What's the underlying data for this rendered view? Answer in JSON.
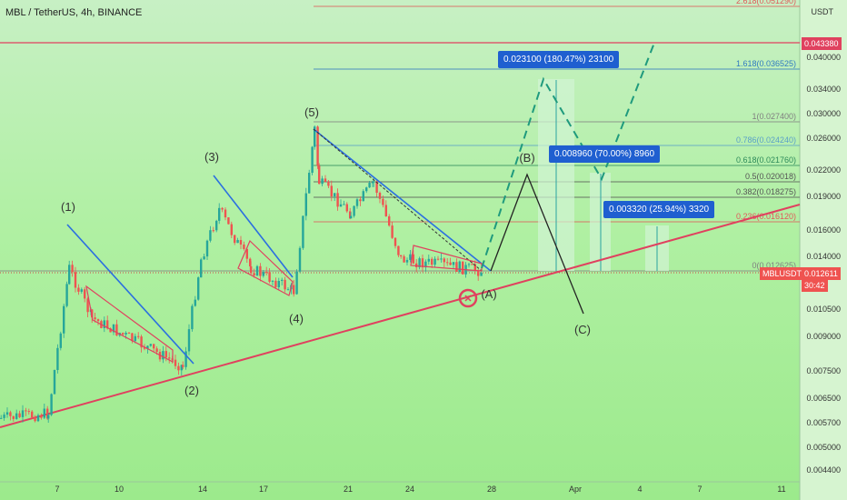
{
  "header": {
    "title": "MBL / TetherUS, 4h, BINANCE"
  },
  "axis": {
    "currency": "USDT",
    "y_ticks": [
      "0.040000",
      "0.034000",
      "0.030000",
      "0.026000",
      "0.022000",
      "0.019000",
      "0.016000",
      "0.014000",
      "0.012000",
      "0.010500",
      "0.009000",
      "0.007500",
      "0.006500",
      "0.005700",
      "0.005000",
      "0.004400"
    ],
    "x_ticks": [
      "7",
      "10",
      "14",
      "17",
      "21",
      "24",
      "28",
      "Apr",
      "4",
      "7",
      "11"
    ]
  },
  "price_tags": {
    "upper_level": "0.043380",
    "symbol": "MBLUSDT",
    "current_price": "0.012611",
    "countdown": "30:42"
  },
  "fib_levels": [
    {
      "label": "2.618(0.051290)",
      "color": "#e05a5a"
    },
    {
      "label": "1.618(0.036525)",
      "color": "#2f7ac0"
    },
    {
      "label": "1(0.027400)",
      "color": "#808080"
    },
    {
      "label": "0.786(0.024240)",
      "color": "#5aa0c8"
    },
    {
      "label": "0.618(0.021760)",
      "color": "#2d8a5a"
    },
    {
      "label": "0.5(0.020018)",
      "color": "#555555"
    },
    {
      "label": "0.382(0.018275)",
      "color": "#555555"
    },
    {
      "label": "0.236(0.016120)",
      "color": "#e05a5a"
    },
    {
      "label": "0(0.012625)",
      "color": "#808080"
    }
  ],
  "measures": [
    {
      "text": "0.023100 (180.47%) 23100"
    },
    {
      "text": "0.008960 (70.00%) 8960"
    },
    {
      "text": "0.003320 (25.94%) 3320"
    }
  ],
  "waves": [
    "(1)",
    "(2)",
    "(3)",
    "(4)",
    "(5)",
    "(A)",
    "(B)",
    "(C)"
  ],
  "chart_data": {
    "type": "candlestick",
    "symbol": "MBLUSDT",
    "timeframe": "4h",
    "exchange": "BINANCE",
    "x": [
      "6",
      "7",
      "8",
      "9",
      "10",
      "11",
      "12",
      "13",
      "14",
      "15",
      "16",
      "17",
      "18",
      "19",
      "20",
      "21",
      "22",
      "23",
      "24",
      "25",
      "26",
      "27",
      "28"
    ],
    "close": [
      0.0057,
      0.0071,
      0.0082,
      0.0076,
      0.007,
      0.007,
      0.0069,
      0.0072,
      0.0094,
      0.009,
      0.0085,
      0.0081,
      0.0108,
      0.027,
      0.0225,
      0.0216,
      0.0203,
      0.017,
      0.0138,
      0.0137,
      0.0133,
      0.013,
      0.0126
    ],
    "current_price": 0.012611,
    "fib_retracement": {
      "2.618": 0.05129,
      "1.618": 0.036525,
      "1": 0.0274,
      "0.786": 0.02424,
      "0.618": 0.02176,
      "0.5": 0.020018,
      "0.382": 0.018275,
      "0.236": 0.01612,
      "0": 0.012625
    },
    "targets": [
      {
        "change": 0.0231,
        "percent": 180.47
      },
      {
        "change": 0.00896,
        "percent": 70.0
      },
      {
        "change": 0.00332,
        "percent": 25.94
      }
    ],
    "horizontal_level": 0.04338,
    "y_scale": "log",
    "grid": false
  }
}
